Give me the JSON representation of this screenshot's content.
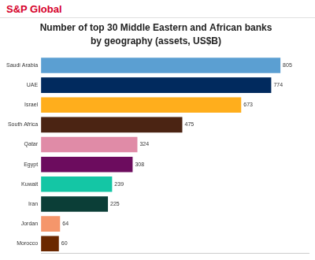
{
  "header": "S&P Global",
  "chart_data": {
    "type": "bar",
    "orientation": "horizontal",
    "title": [
      "Number of top 30 Middle Eastern and African banks",
      "by geography (assets, US$B)"
    ],
    "categories": [
      "Saudi Arabia",
      "UAE",
      "Israel",
      "South Africa",
      "Qatar",
      "Egypt",
      "Kuwait",
      "Iran",
      "Jordan",
      "Morocco"
    ],
    "values": [
      805,
      774,
      673,
      475,
      324,
      308,
      239,
      225,
      64,
      60
    ],
    "colors": [
      "#5b9fd2",
      "#012a5e",
      "#ffae1c",
      "#4b2413",
      "#e08ba7",
      "#6c0c5e",
      "#14c6a5",
      "#0b3e37",
      "#f5966b",
      "#6b2800"
    ],
    "xlim": [
      0,
      900
    ],
    "grid": false,
    "data_labels": true,
    "tick_labels": "y"
  }
}
